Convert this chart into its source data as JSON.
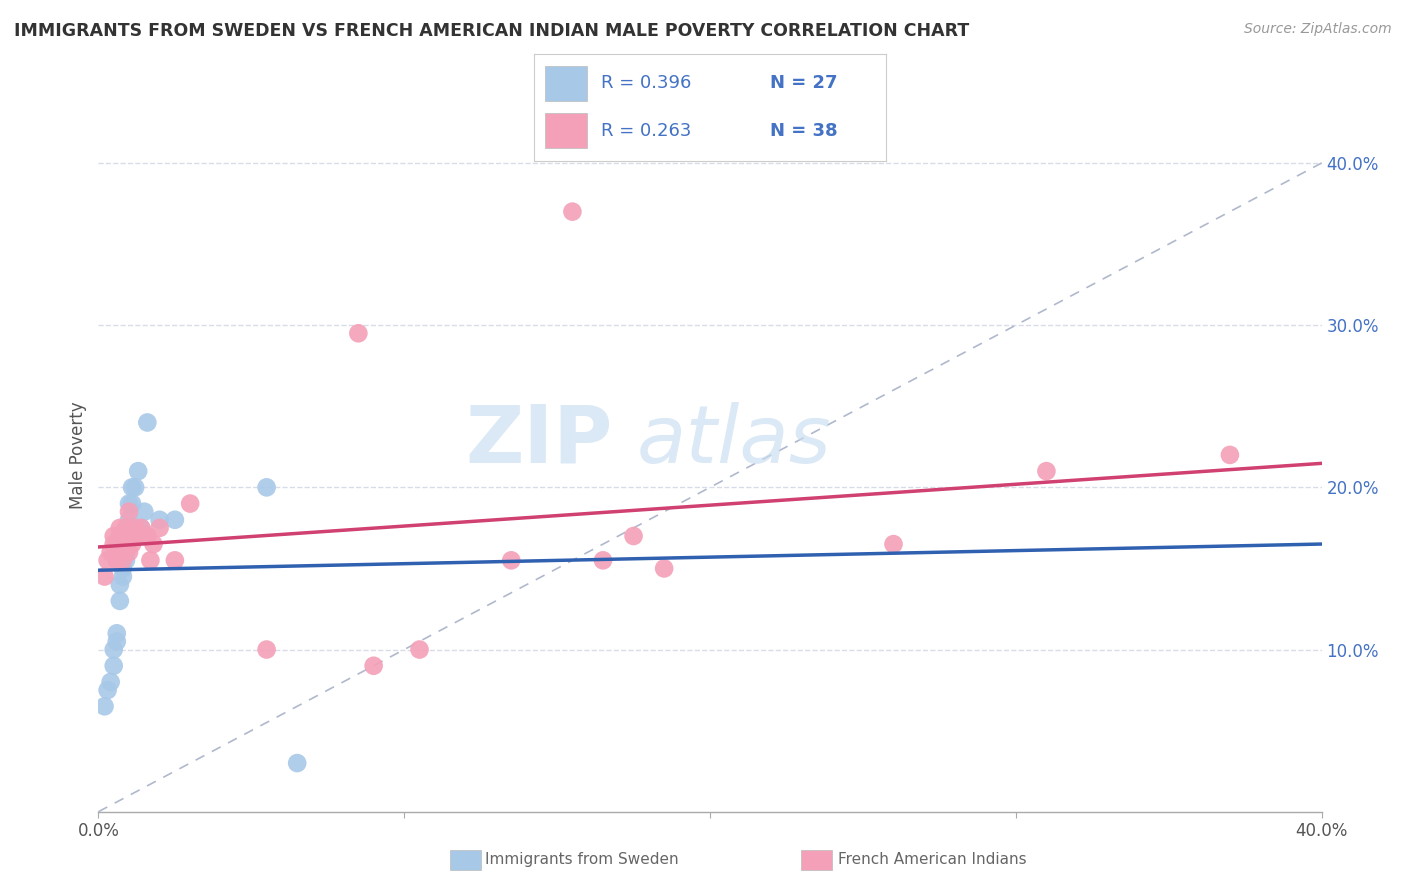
{
  "title": "IMMIGRANTS FROM SWEDEN VS FRENCH AMERICAN INDIAN MALE POVERTY CORRELATION CHART",
  "source": "Source: ZipAtlas.com",
  "ylabel": "Male Poverty",
  "xlim": [
    0.0,
    0.42
  ],
  "ylim": [
    -0.02,
    0.46
  ],
  "plot_xlim": [
    0.0,
    0.4
  ],
  "plot_ylim": [
    0.0,
    0.44
  ],
  "xtick_vals": [
    0.0,
    0.1,
    0.2,
    0.3,
    0.4
  ],
  "xtick_labels": [
    "0.0%",
    "",
    "",
    "",
    "40.0%"
  ],
  "ytick_vals_right": [
    0.1,
    0.2,
    0.3,
    0.4
  ],
  "ytick_labels_right": [
    "10.0%",
    "20.0%",
    "30.0%",
    "40.0%"
  ],
  "blue_color": "#a8c8e8",
  "pink_color": "#f4a0b8",
  "blue_line_color": "#3060b0",
  "pink_line_color": "#d04070",
  "diag_line_color": "#b0b8cc",
  "background_color": "#ffffff",
  "grid_color": "#d8dce8",
  "sweden_x": [
    0.002,
    0.003,
    0.004,
    0.005,
    0.005,
    0.006,
    0.006,
    0.007,
    0.007,
    0.008,
    0.008,
    0.009,
    0.009,
    0.009,
    0.01,
    0.01,
    0.011,
    0.011,
    0.012,
    0.013,
    0.014,
    0.015,
    0.016,
    0.02,
    0.025,
    0.055,
    0.065
  ],
  "sweden_y": [
    0.065,
    0.075,
    0.08,
    0.09,
    0.1,
    0.105,
    0.11,
    0.13,
    0.14,
    0.145,
    0.15,
    0.155,
    0.16,
    0.17,
    0.18,
    0.19,
    0.19,
    0.2,
    0.2,
    0.21,
    0.175,
    0.185,
    0.24,
    0.18,
    0.18,
    0.2,
    0.03
  ],
  "french_x": [
    0.002,
    0.003,
    0.004,
    0.005,
    0.005,
    0.006,
    0.006,
    0.007,
    0.007,
    0.008,
    0.008,
    0.009,
    0.009,
    0.01,
    0.01,
    0.011,
    0.012,
    0.013,
    0.014,
    0.015,
    0.016,
    0.017,
    0.018,
    0.02,
    0.025,
    0.03,
    0.055,
    0.085,
    0.09,
    0.105,
    0.135,
    0.155,
    0.165,
    0.175,
    0.185,
    0.26,
    0.31,
    0.37
  ],
  "french_y": [
    0.145,
    0.155,
    0.16,
    0.165,
    0.17,
    0.155,
    0.165,
    0.17,
    0.175,
    0.155,
    0.16,
    0.17,
    0.175,
    0.185,
    0.16,
    0.165,
    0.175,
    0.17,
    0.175,
    0.17,
    0.17,
    0.155,
    0.165,
    0.175,
    0.155,
    0.19,
    0.1,
    0.295,
    0.09,
    0.1,
    0.155,
    0.37,
    0.155,
    0.17,
    0.15,
    0.165,
    0.21,
    0.22
  ],
  "watermark_zip": "ZIP",
  "watermark_atlas": "atlas",
  "legend_r1": "R = 0.396",
  "legend_n1": "N = 27",
  "legend_r2": "R = 0.263",
  "legend_n2": "N = 38"
}
